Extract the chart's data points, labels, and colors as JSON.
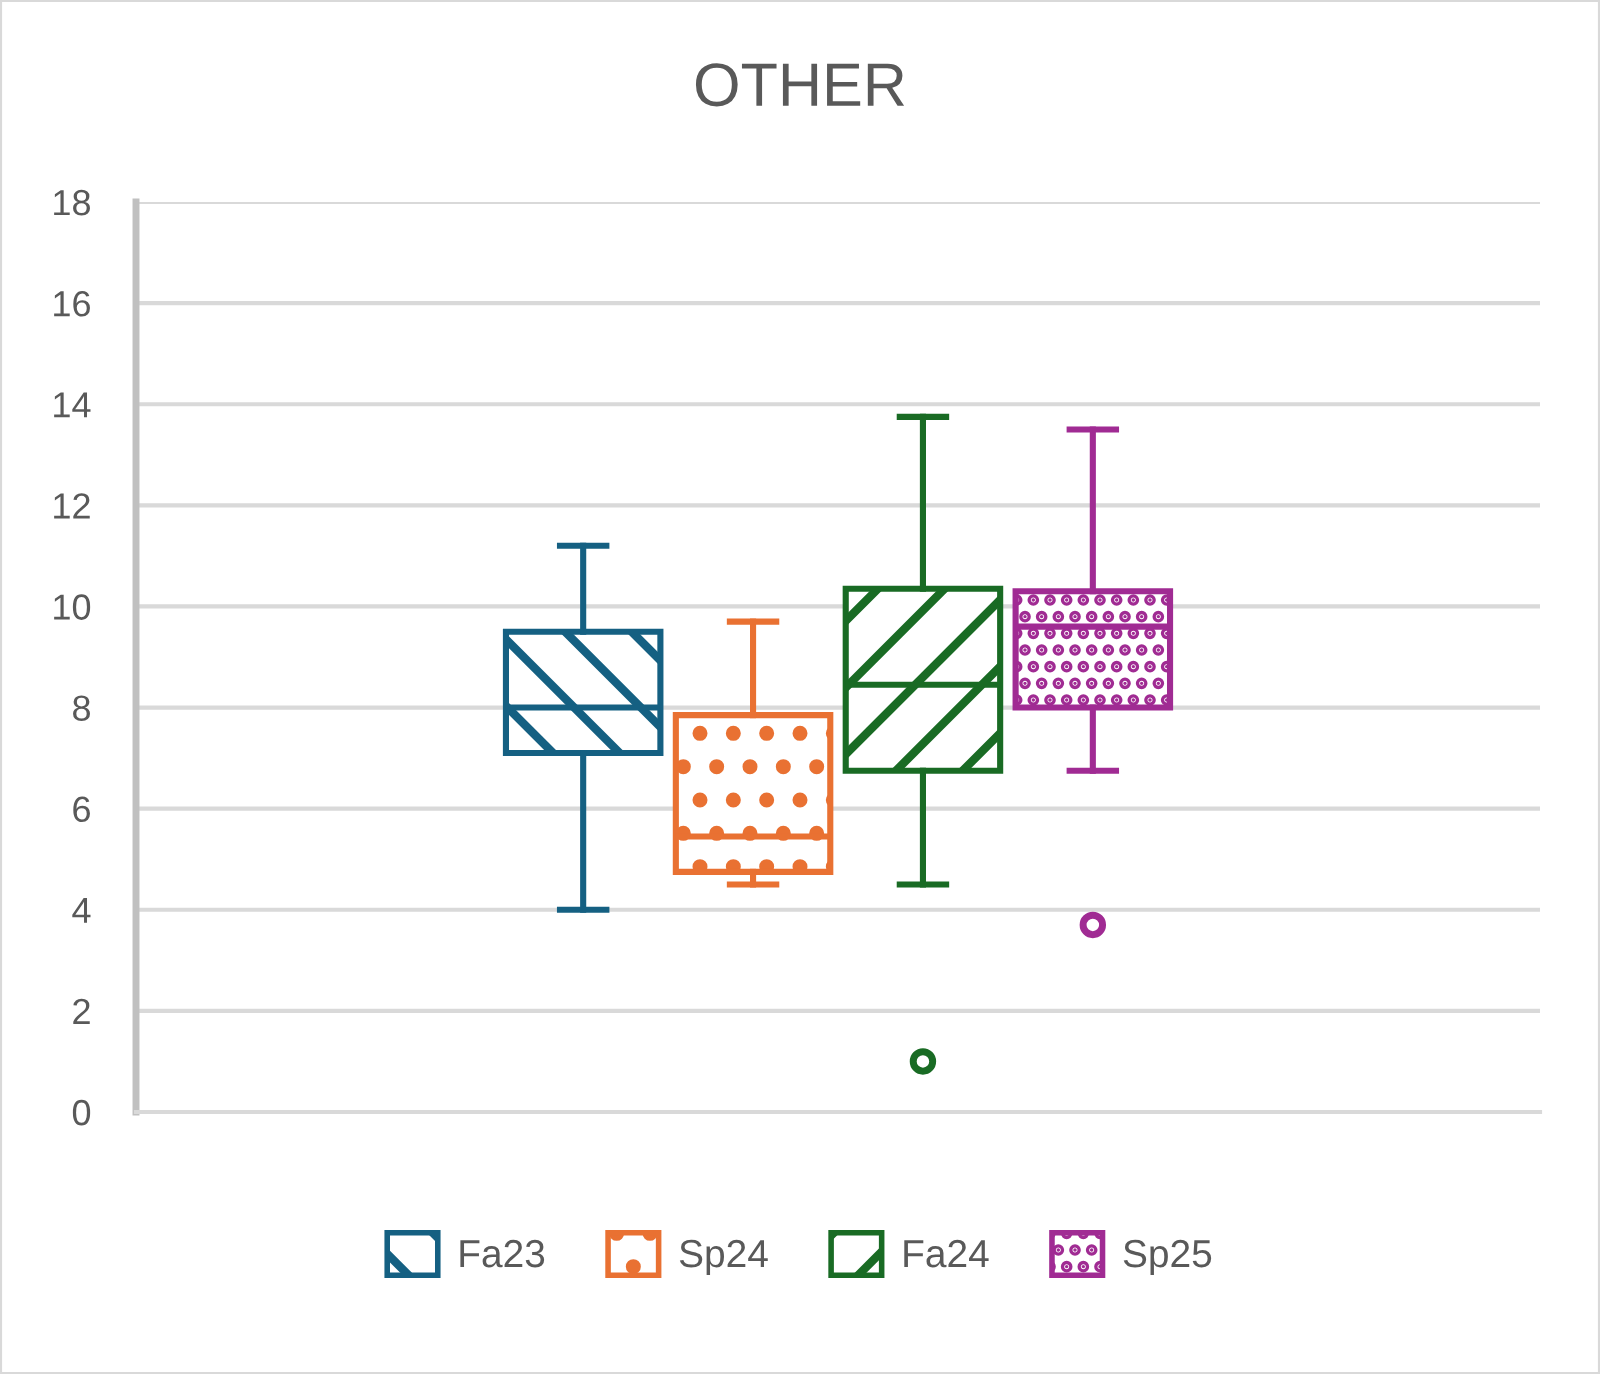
{
  "chart_data": {
    "type": "box",
    "title": "OTHER",
    "categories": [
      null
    ],
    "series": [
      {
        "name": "Fa23",
        "color": "#156082",
        "boxes": [
          {
            "low": 4.0,
            "q1": 7.1,
            "median": 8.0,
            "q3": 9.5,
            "high": 11.2
          }
        ]
      },
      {
        "name": "Sp24",
        "color": "#e97132",
        "boxes": [
          {
            "low": 4.5,
            "q1": 4.75,
            "median": 5.45,
            "q3": 7.85,
            "high": 9.7
          }
        ]
      },
      {
        "name": "Fa24",
        "color": "#196b24",
        "boxes": [
          {
            "low": 4.5,
            "q1": 6.75,
            "median": 8.45,
            "q3": 10.35,
            "high": 13.75,
            "outliers": [
              1.0
            ]
          }
        ]
      },
      {
        "name": "Sp25",
        "color": "#a02b93",
        "boxes": [
          {
            "low": 6.75,
            "q1": 8.0,
            "median": 9.6,
            "q3": 10.3,
            "high": 13.5,
            "outliers": [
              3.7
            ]
          }
        ]
      }
    ],
    "ylim": [
      0,
      18
    ],
    "yticks": [
      0,
      2,
      4,
      6,
      8,
      10,
      12,
      14,
      16,
      18
    ],
    "grid": "y",
    "legend": "bottom",
    "tick_labels": "y"
  }
}
